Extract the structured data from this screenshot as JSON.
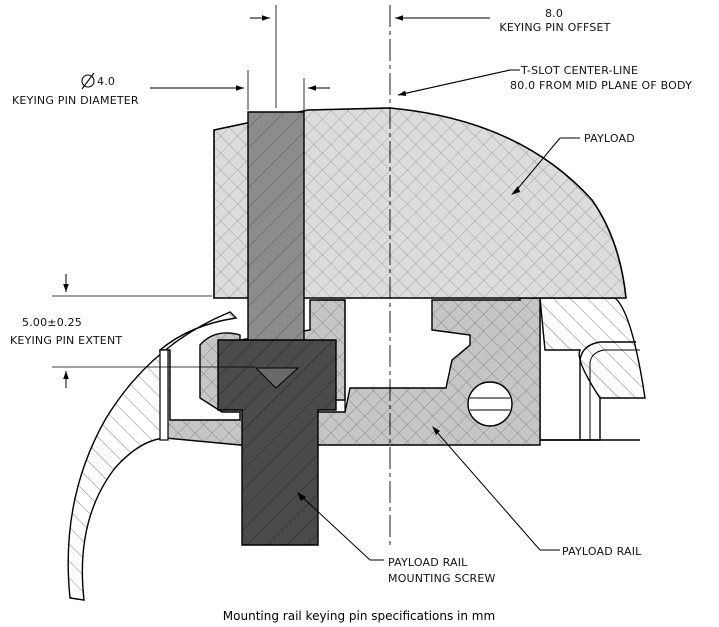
{
  "labels": {
    "offset_value": "8.0",
    "offset_name": "KEYING PIN OFFSET",
    "diameter_value": "4.0",
    "diameter_name": "KEYING PIN DIAMETER",
    "tslot_line1": "T-SLOT CENTER-LINE",
    "tslot_line2": "80.0 FROM MID PLANE OF BODY",
    "payload": "PAYLOAD",
    "extent_value": "5.00±0.25",
    "extent_name": "KEYING PIN EXTENT",
    "screw_line1": "PAYLOAD RAIL",
    "screw_line2": "MOUNTING SCREW",
    "rail": "PAYLOAD RAIL"
  },
  "caption": "Mounting rail keying pin specifications in mm",
  "icons": {
    "diameter_symbol": "diameter-symbol-icon"
  },
  "colors": {
    "payload_fill": "#dcdcdc",
    "rail_fill": "#c8c8c8",
    "pin_fill": "#8c8c8c",
    "screw_fill": "#4a4a4a",
    "hatch": "#7a7a7a"
  }
}
